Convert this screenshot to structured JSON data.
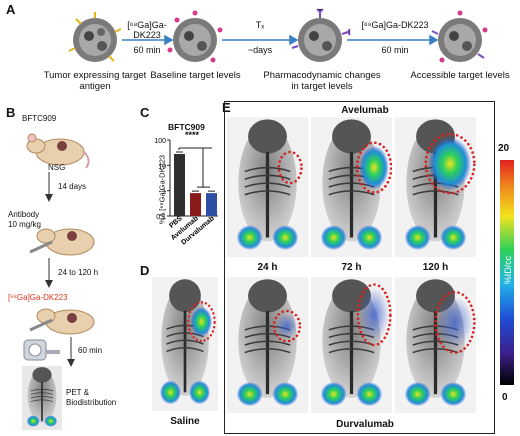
{
  "panelA": {
    "label": "A",
    "tracer1": "[⁶⁸Ga]Ga-DK223",
    "time1": "60 min",
    "tx_label": "Tₓ",
    "tx_time": "~days",
    "tracer2": "[⁶⁸Ga]Ga-DK223",
    "time2": "60 min",
    "steps": [
      "Tumor expressing target antigen",
      "Baseline target levels",
      "Pharmacodynamic changes in target levels",
      "Accessible target levels"
    ]
  },
  "panelB": {
    "label": "B",
    "cell_line": "BFTC909",
    "mouse": "NSG",
    "wait1": "14 days",
    "antibody": "Antibody",
    "dose": "10 mg/kg",
    "wait2": "24 to 120 h",
    "tracer": "[⁶⁸Ga]Ga-DK223",
    "wait3": "60 min",
    "final": "PET & Biodistribution"
  },
  "panelC": {
    "label": "C",
    "title": "BFTC909",
    "ylabel": "%A [⁶⁸Ga]Ga-DK223",
    "significance": "****",
    "ticks": [
      "100",
      "10",
      "1",
      "0.1"
    ],
    "colors": {
      "PBS": "#2f2f2f",
      "Avelumab": "#8b1a1a",
      "Durvalumab": "#2e4fa3"
    }
  },
  "chart_data": {
    "type": "bar",
    "title": "BFTC909",
    "ylabel": "%A [68Ga]Ga-DK223",
    "yscale": "log",
    "ylim": [
      0.1,
      100
    ],
    "categories": [
      "PBS",
      "Avelumab",
      "Durvalumab"
    ],
    "values": [
      28,
      0.8,
      0.8
    ]
  },
  "panelD": {
    "label": "D",
    "caption": "Saline"
  },
  "panelE": {
    "label": "E",
    "top_title": "Avelumab",
    "bottom_title": "Durvalumab",
    "times": [
      "24 h",
      "72 h",
      "120 h"
    ]
  },
  "colorbar": {
    "max": "20",
    "min": "0",
    "unit": "%ID/cc",
    "colors": [
      "#000000",
      "#3b1f8a",
      "#1f4fd6",
      "#22b3e8",
      "#2ed15a",
      "#f2e21f",
      "#f08a1e",
      "#e0221e"
    ]
  }
}
